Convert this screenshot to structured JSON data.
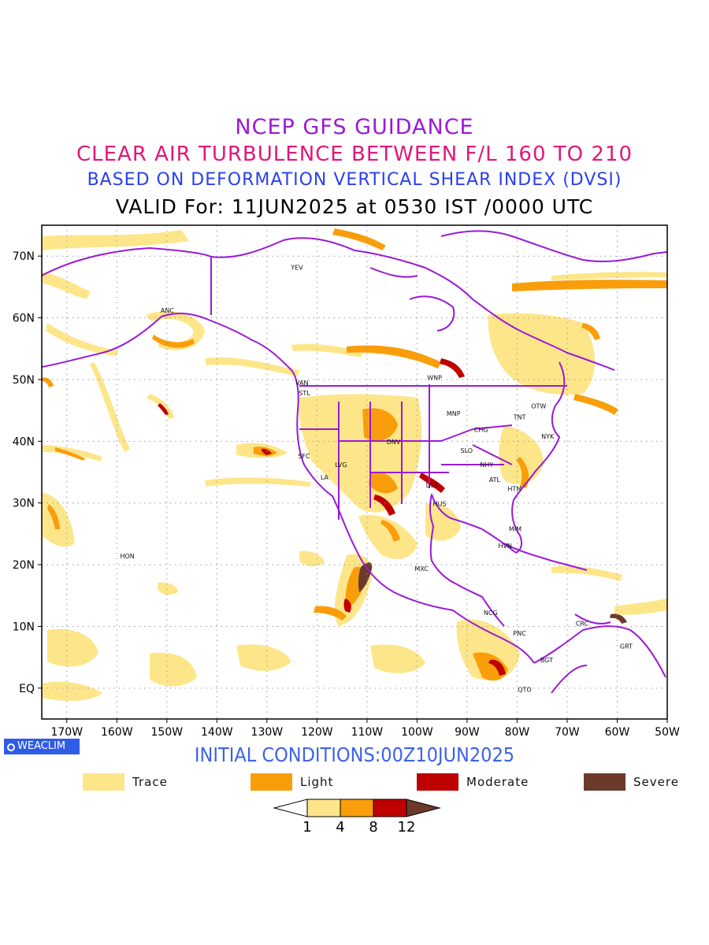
{
  "titles": {
    "line1": "NCEP GFS GUIDANCE",
    "line2": "CLEAR AIR TURBULENCE BETWEEN F/L 160 TO 210",
    "line3": "BASED ON DEFORMATION VERTICAL SHEAR INDEX (DVSI)",
    "line4": "VALID For: 11JUN2025 at 0530 IST /0000 UTC"
  },
  "initial_conditions": "INITIAL CONDITIONS:00Z10JUN2025",
  "badge": "WEACLIM",
  "colors": {
    "trace": "#fde68a",
    "light": "#f99e0a",
    "moderate": "#bf0000",
    "severe": "#6b3a2a",
    "coast": "#9a1ad6",
    "title1": "#9a1ad6",
    "title2": "#e0177a",
    "title3": "#2a3ff0",
    "initial": "#3d63e8"
  },
  "map": {
    "lon_ticks": [
      "170W",
      "160W",
      "150W",
      "140W",
      "130W",
      "120W",
      "110W",
      "100W",
      "90W",
      "80W",
      "70W",
      "60W",
      "50W"
    ],
    "lat_ticks": [
      "70N",
      "60N",
      "50N",
      "40N",
      "30N",
      "20N",
      "10N",
      "EQ"
    ],
    "lon_values": [
      -170,
      -160,
      -150,
      -140,
      -130,
      -120,
      -110,
      -100,
      -90,
      -80,
      -70,
      -60,
      -50
    ],
    "lat_values": [
      70,
      60,
      50,
      40,
      30,
      20,
      10,
      0
    ],
    "lon_range": [
      -175,
      -50
    ],
    "lat_range": [
      -5,
      75
    ],
    "stations": [
      {
        "label": "ANC",
        "lon": -149.9,
        "lat": 61.2
      },
      {
        "label": "YEV",
        "lon": -124,
        "lat": 68.2
      },
      {
        "label": "VAN",
        "lon": -123,
        "lat": 49.5
      },
      {
        "label": "STL",
        "lon": -122.5,
        "lat": 47.8
      },
      {
        "label": "WNP",
        "lon": -96.5,
        "lat": 50.3
      },
      {
        "label": "MNP",
        "lon": -92.7,
        "lat": 44.5
      },
      {
        "label": "TNT",
        "lon": -79.5,
        "lat": 43.9
      },
      {
        "label": "OTW",
        "lon": -75.7,
        "lat": 45.7
      },
      {
        "label": "CHG",
        "lon": -87.2,
        "lat": 41.9
      },
      {
        "label": "NYK",
        "lon": -73.9,
        "lat": 40.8
      },
      {
        "label": "DNV",
        "lon": -104.7,
        "lat": 39.9
      },
      {
        "label": "SFC",
        "lon": -122.6,
        "lat": 37.6
      },
      {
        "label": "LVG",
        "lon": -115.2,
        "lat": 36.2
      },
      {
        "label": "SLO",
        "lon": -90.1,
        "lat": 38.5
      },
      {
        "label": "NHY",
        "lon": -86.1,
        "lat": 36.2
      },
      {
        "label": "LA",
        "lon": -118.5,
        "lat": 34.2
      },
      {
        "label": "ATL",
        "lon": -84.5,
        "lat": 33.8
      },
      {
        "label": "DLS",
        "lon": -97,
        "lat": 32.9
      },
      {
        "label": "HTM",
        "lon": -80.5,
        "lat": 32.3
      },
      {
        "label": "HUS",
        "lon": -95.5,
        "lat": 29.9
      },
      {
        "label": "MIM",
        "lon": -80.4,
        "lat": 25.8
      },
      {
        "label": "HVN",
        "lon": -82.4,
        "lat": 23.1
      },
      {
        "label": "HON",
        "lon": -157.9,
        "lat": 21.4
      },
      {
        "label": "MXC",
        "lon": -99.1,
        "lat": 19.4
      },
      {
        "label": "NCG",
        "lon": -85.3,
        "lat": 12.2
      },
      {
        "label": "CRC",
        "lon": -67,
        "lat": 10.5
      },
      {
        "label": "PNC",
        "lon": -79.5,
        "lat": 8.9
      },
      {
        "label": "GRT",
        "lon": -58.2,
        "lat": 6.8
      },
      {
        "label": "BGT",
        "lon": -74.1,
        "lat": 4.6
      },
      {
        "label": "QTO",
        "lon": -78.5,
        "lat": -0.2
      }
    ]
  },
  "legend": [
    {
      "label": "Trace",
      "color": "#fde68a"
    },
    {
      "label": "Light",
      "color": "#f99e0a"
    },
    {
      "label": "Moderate",
      "color": "#bf0000"
    },
    {
      "label": "Severe",
      "color": "#6b3a2a"
    }
  ],
  "colorbar": {
    "ticks": [
      "1",
      "4",
      "8",
      "12"
    ],
    "colors": [
      "#ffffff",
      "#fde68a",
      "#f99e0a",
      "#bf0000",
      "#6b3a2a"
    ]
  }
}
